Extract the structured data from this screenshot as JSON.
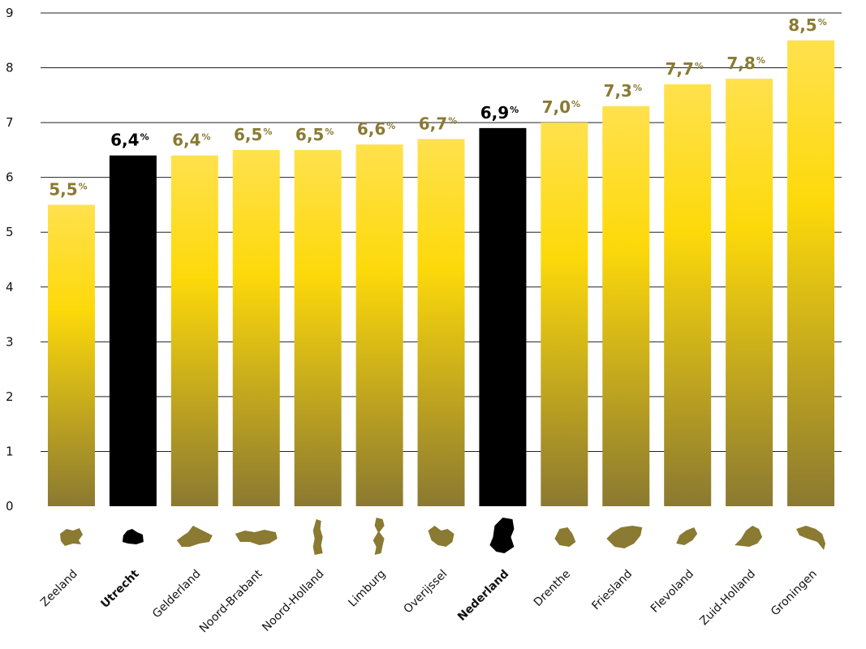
{
  "chart_data": {
    "type": "bar",
    "title": "",
    "xlabel": "",
    "ylabel": "",
    "ylim": [
      0,
      9
    ],
    "yticks": [
      0,
      1,
      2,
      3,
      4,
      5,
      6,
      7,
      8,
      9
    ],
    "grid": true,
    "value_suffix": "%",
    "categories": [
      "Zeeland",
      "Utrecht",
      "Gelderland",
      "Noord-Brabant",
      "Noord-Holland",
      "Limburg",
      "Overijssel",
      "Nederland",
      "Drenthe",
      "Friesland",
      "Flevoland",
      "Zuid-Holland",
      "Groningen"
    ],
    "values": [
      5.5,
      6.4,
      6.4,
      6.5,
      6.5,
      6.6,
      6.7,
      6.9,
      7.0,
      7.3,
      7.7,
      7.8,
      8.5
    ],
    "value_labels": [
      "5,5",
      "6,4",
      "6,4",
      "6,5",
      "6,5",
      "6,6",
      "6,7",
      "6,9",
      "7,0",
      "7,3",
      "7,7",
      "7,8",
      "8,5"
    ],
    "highlighted": [
      "Utrecht",
      "Nederland"
    ],
    "colors": {
      "bar_top": "#ffe14d",
      "bar_mid": "#fdd90a",
      "bar_bottom": "#8b7931",
      "highlight": "#000000",
      "label": "#8a7a32",
      "label_highlight": "#000000",
      "grid": "#222222"
    },
    "icons": [
      "zeeland-map-icon",
      "utrecht-map-icon",
      "gelderland-map-icon",
      "noord-brabant-map-icon",
      "noord-holland-map-icon",
      "limburg-map-icon",
      "overijssel-map-icon",
      "nederland-map-icon",
      "drenthe-map-icon",
      "friesland-map-icon",
      "flevoland-map-icon",
      "zuid-holland-map-icon",
      "groningen-map-icon"
    ]
  }
}
